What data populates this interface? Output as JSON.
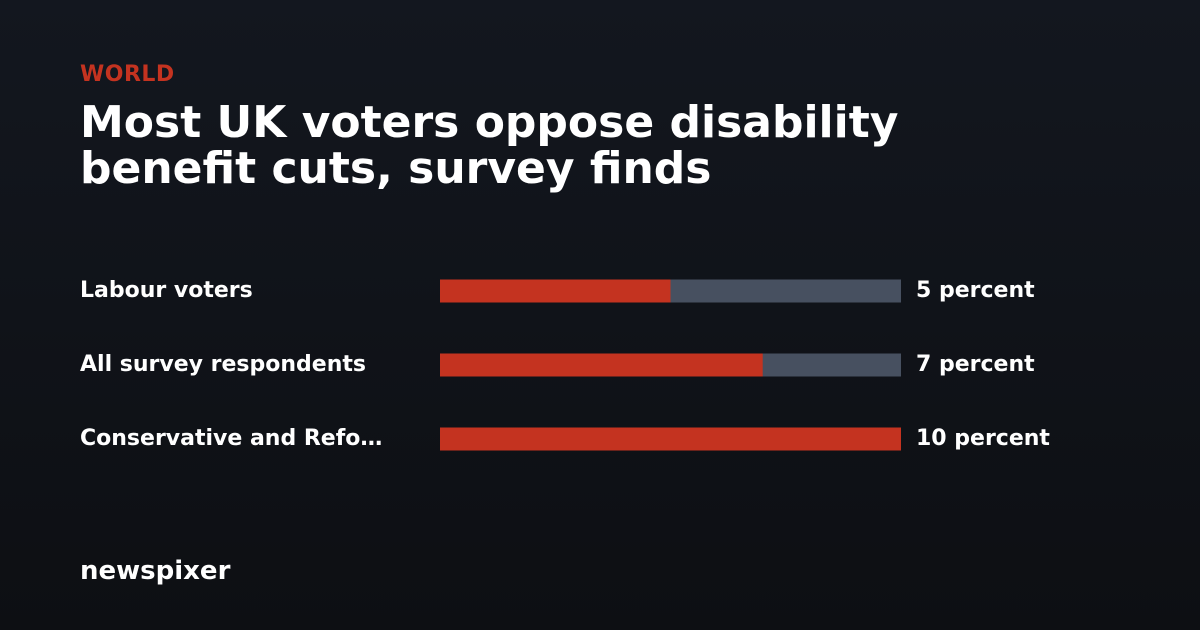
{
  "section": "WORLD",
  "brand": "newspixer",
  "chart_data": {
    "type": "bar",
    "title": "Most UK voters oppose disability benefit cuts, survey finds",
    "categories": [
      "Labour voters",
      "All survey respondents",
      "Conservative and Refo…"
    ],
    "values": [
      5,
      7,
      10
    ],
    "value_labels": [
      "5 percent",
      "7 percent",
      "10 percent"
    ],
    "color": "#c43320",
    "track_color": "#475060",
    "xlim": [
      0,
      10
    ]
  }
}
